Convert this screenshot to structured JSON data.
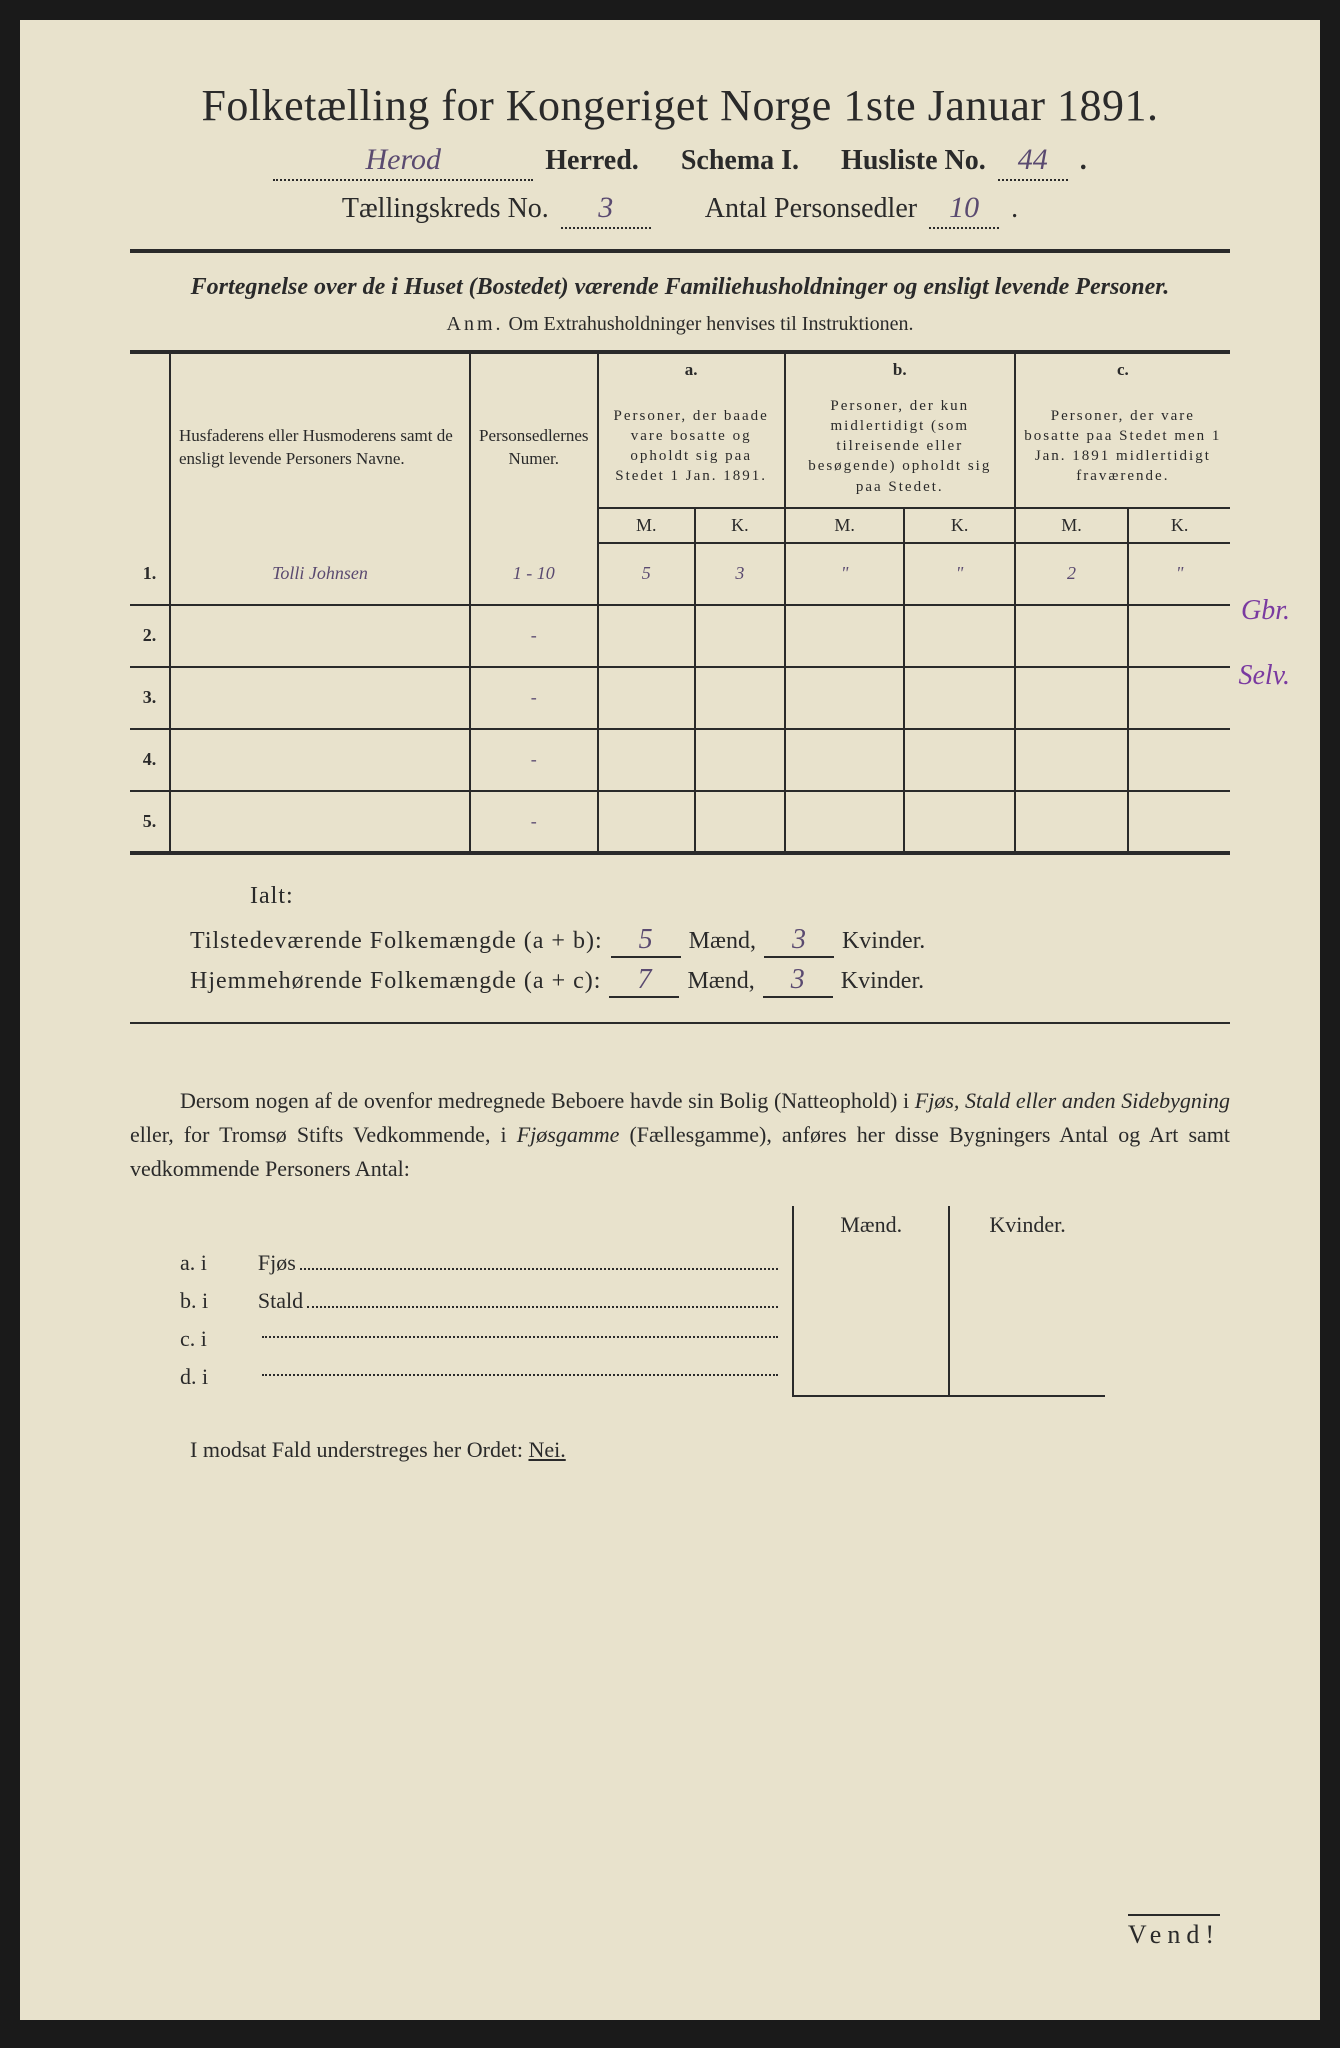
{
  "title": "Folketælling for Kongeriget Norge 1ste Januar 1891.",
  "header": {
    "herred_value": "Herod",
    "herred_label": "Herred.",
    "schema_label": "Schema I.",
    "husliste_label": "Husliste No.",
    "husliste_value": "44",
    "kreds_label": "Tællingskreds No.",
    "kreds_value": "3",
    "antal_label": "Antal Personsedler",
    "antal_value": "10"
  },
  "subheader": "Fortegnelse over de i Huset (Bostedet) værende Familiehusholdninger og ensligt levende Personer.",
  "anm_label": "Anm.",
  "anm_text": "Om Extrahusholdninger henvises til Instruktionen.",
  "table": {
    "col1": "Husfaderens eller Husmoderens samt de ensligt levende Personers Navne.",
    "col2": "Personsedlernes Numer.",
    "a_label": "a.",
    "a_text": "Personer, der baade vare bosatte og opholdt sig paa Stedet 1 Jan. 1891.",
    "b_label": "b.",
    "b_text": "Personer, der kun midlertidigt (som tilreisende eller besøgende) opholdt sig paa Stedet.",
    "c_label": "c.",
    "c_text": "Personer, der vare bosatte paa Stedet men 1 Jan. 1891 midlertidigt fraværende.",
    "m": "M.",
    "k": "K.",
    "margin1": "Gbr.",
    "margin2": "Selv.",
    "rows": [
      {
        "n": "1.",
        "name": "Tolli Johnsen",
        "num": "1 - 10",
        "am": "5",
        "ak": "3",
        "bm": "\"",
        "bk": "\"",
        "cm": "2",
        "ck": "\""
      },
      {
        "n": "2.",
        "name": "",
        "num": "-",
        "am": "",
        "ak": "",
        "bm": "",
        "bk": "",
        "cm": "",
        "ck": ""
      },
      {
        "n": "3.",
        "name": "",
        "num": "-",
        "am": "",
        "ak": "",
        "bm": "",
        "bk": "",
        "cm": "",
        "ck": ""
      },
      {
        "n": "4.",
        "name": "",
        "num": "-",
        "am": "",
        "ak": "",
        "bm": "",
        "bk": "",
        "cm": "",
        "ck": ""
      },
      {
        "n": "5.",
        "name": "",
        "num": "-",
        "am": "",
        "ak": "",
        "bm": "",
        "bk": "",
        "cm": "",
        "ck": ""
      }
    ]
  },
  "ialt": "Ialt:",
  "sums": {
    "line1_label": "Tilstedeværende Folkemængde (a + b):",
    "line1_m": "5",
    "line1_k": "3",
    "line2_label": "Hjemmehørende Folkemængde (a + c):",
    "line2_m": "7",
    "line2_k": "3",
    "maend": "Mænd,",
    "kvinder": "Kvinder."
  },
  "paragraph": {
    "p1": "Dersom nogen af de ovenfor medregnede Beboere havde sin Bolig (Natteophold) i ",
    "p2": "Fjøs, Stald eller anden Sidebygning",
    "p3": " eller, for Tromsø Stifts Vedkommende, i ",
    "p4": "Fjøsgamme",
    "p5": " (Fællesgamme), anføres her disse Bygningers Antal og Art samt vedkommende Personers Antal:"
  },
  "subtable": {
    "maend": "Mænd.",
    "kvinder": "Kvinder.",
    "rows": [
      {
        "lbl": "a.  i",
        "name": "Fjøs"
      },
      {
        "lbl": "b.  i",
        "name": "Stald"
      },
      {
        "lbl": "c.  i",
        "name": ""
      },
      {
        "lbl": "d.  i",
        "name": ""
      }
    ]
  },
  "nei_line_pre": "I modsat Fald understreges her Ordet: ",
  "nei": "Nei.",
  "vend": "Vend!"
}
